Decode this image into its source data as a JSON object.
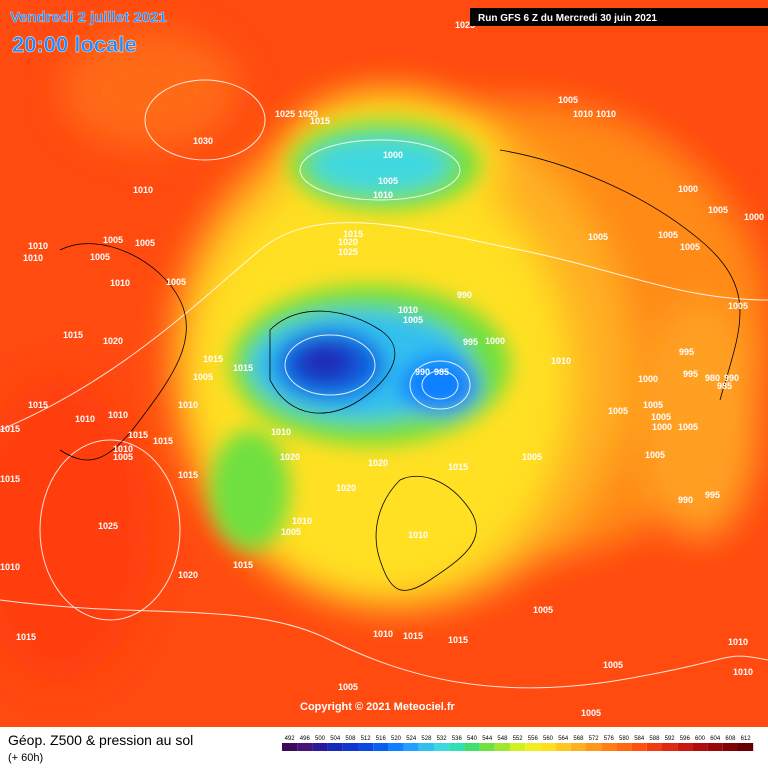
{
  "header": {
    "date": "Vendredi 2 juillet 2021",
    "time": "20:00 locale",
    "run": "Run GFS 6 Z du Mercredi 30 juin 2021"
  },
  "copyright": "Copyright © 2021 Meteociel.fr",
  "footer": {
    "title": "Géop. Z500 & pression au sol",
    "lead": "(+ 60h)"
  },
  "legend": {
    "ticks": [
      492,
      496,
      500,
      504,
      508,
      512,
      516,
      520,
      524,
      528,
      532,
      536,
      540,
      544,
      548,
      552,
      556,
      560,
      564,
      568,
      572,
      576,
      580,
      584,
      588,
      592,
      596,
      600,
      604,
      608,
      612
    ],
    "colors": [
      "#3b0a5a",
      "#4b0f7a",
      "#2a1a9a",
      "#1a2ab8",
      "#1038d0",
      "#0a4ae0",
      "#0860f0",
      "#1080ff",
      "#20a0ff",
      "#30c0f0",
      "#40d8e0",
      "#30e0b0",
      "#40e070",
      "#70e040",
      "#a0e830",
      "#d0f020",
      "#f0f020",
      "#ffe020",
      "#ffc820",
      "#ffb020",
      "#ff9818",
      "#ff8010",
      "#ff6810",
      "#ff5010",
      "#f03c10",
      "#e02810",
      "#c81810",
      "#b00c0c",
      "#980808",
      "#800404",
      "#680000"
    ]
  },
  "isobars": [
    1025,
    1005,
    1010,
    1010,
    1025,
    1020,
    1015,
    1030,
    1000,
    1005,
    1010,
    1010,
    1000,
    1005,
    1000,
    1015,
    1020,
    1025,
    1005,
    1005,
    1010,
    1010,
    1005,
    1005,
    1005,
    1005,
    1010,
    1005,
    1005,
    990,
    1010,
    1005,
    1015,
    1020,
    995,
    1000,
    1015,
    1015,
    1010,
    995,
    990,
    985,
    1005,
    995,
    1000,
    980,
    990,
    985,
    1010,
    1015,
    1005,
    1005,
    1005,
    1000,
    1005,
    1010,
    1010,
    1015,
    1015,
    1015,
    1010,
    1010,
    1005,
    1020,
    1020,
    1015,
    1005,
    1005,
    1015,
    1015,
    1020,
    990,
    995,
    1010,
    1005,
    1010,
    1025,
    1010,
    1015,
    1020,
    1005,
    1015,
    1010,
    1015,
    1015,
    1010,
    1005,
    1005,
    1010,
    1005
  ]
}
